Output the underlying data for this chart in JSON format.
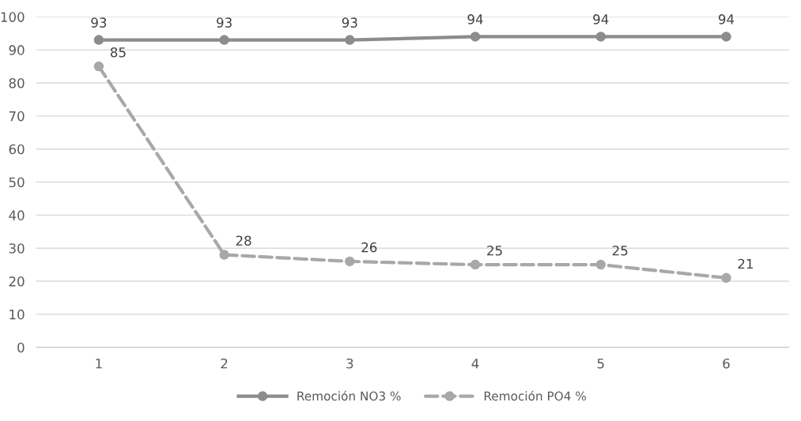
{
  "chart_data": {
    "type": "line",
    "categories": [
      "1",
      "2",
      "3",
      "4",
      "5",
      "6"
    ],
    "series": [
      {
        "name": "Remoción NO3 %",
        "color": "#8c8c8c",
        "line_style": "solid",
        "values": [
          93,
          93,
          93,
          94,
          94,
          94
        ]
      },
      {
        "name": "Remoción PO4 %",
        "color": "#a8a8a8",
        "line_style": "dashed",
        "values": [
          85,
          28,
          26,
          25,
          25,
          21
        ]
      }
    ],
    "ylim": [
      0,
      100
    ],
    "yticks": [
      0,
      10,
      20,
      30,
      40,
      50,
      60,
      70,
      80,
      90,
      100
    ],
    "grid": "y",
    "legend": "bottom",
    "marker": "circle",
    "data_labels": true
  }
}
